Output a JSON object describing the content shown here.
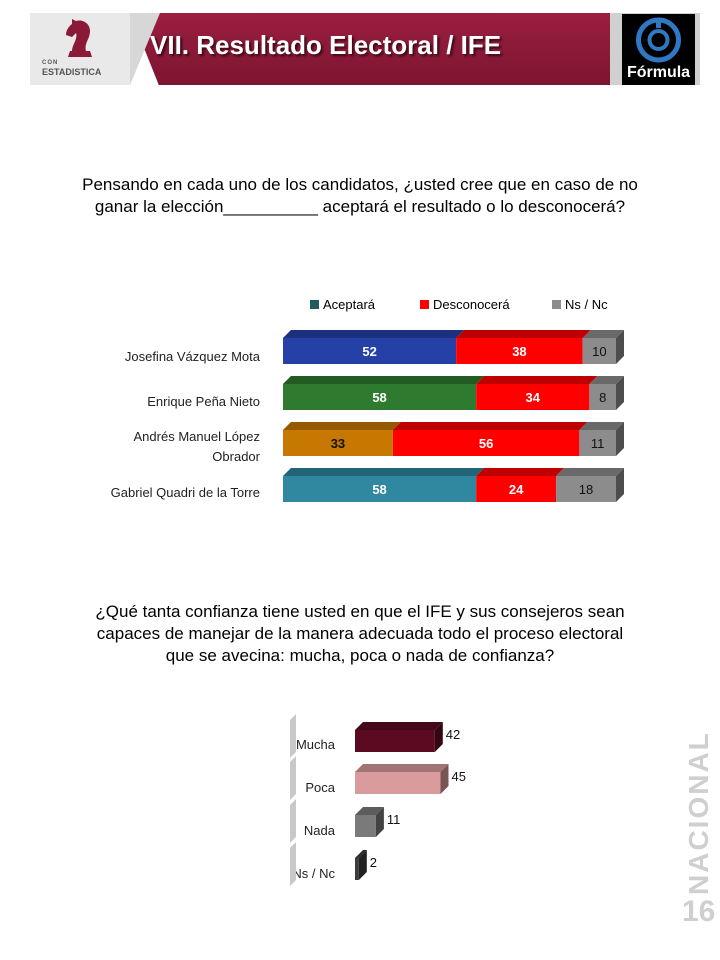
{
  "header": {
    "title": "VII. Resultado Electoral / IFE",
    "left_logo_line1": "CON",
    "left_logo_line2": "ESTADISTICA",
    "right_logo_text": "Fórmula"
  },
  "question1": {
    "line1": "Pensando en cada uno de los candidatos, ¿usted cree que en caso de no",
    "line2": "ganar la elección__________   aceptará el resultado o lo desconocerá?"
  },
  "question2": {
    "line1": "¿Qué tanta confianza tiene usted en que el IFE y sus consejeros sean",
    "line2": "capaces de manejar de la manera adecuada todo el proceso electoral",
    "line3": "que se avecina: mucha, poca o nada de confianza?"
  },
  "side": {
    "vertical_word": "NACIONAL",
    "page_number": "16"
  },
  "chart_data": [
    {
      "type": "bar",
      "orientation": "horizontal",
      "stacked": true,
      "style": "3d",
      "categories": [
        "Josefina Vázquez Mota",
        "Enrique Peña Nieto",
        "Andrés Manuel López Obrador",
        "Gabriel Quadri de la Torre"
      ],
      "category_lines": [
        [
          "Josefina Vázquez Mota"
        ],
        [
          "Enrique Peña Nieto"
        ],
        [
          "Andrés Manuel López",
          "Obrador"
        ],
        [
          "Gabriel Quadri de la Torre"
        ]
      ],
      "series": [
        {
          "name": "Aceptará",
          "values": [
            52,
            58,
            33,
            58
          ],
          "colors": [
            "#2541a8",
            "#2e7a2e",
            "#c77800",
            "#2f87a0"
          ],
          "legend_color": "#1f5c5c"
        },
        {
          "name": "Desconocerá",
          "values": [
            38,
            34,
            56,
            24
          ],
          "color": "#ff0000"
        },
        {
          "name": "Ns / Nc",
          "values": [
            10,
            8,
            11,
            18
          ],
          "color": "#8c8c8c"
        }
      ],
      "legend_position": "top",
      "xlim": [
        0,
        100
      ]
    },
    {
      "type": "bar",
      "orientation": "horizontal",
      "style": "3d",
      "categories": [
        "Mucha",
        "Poca",
        "Nada",
        "Ns / Nc"
      ],
      "values": [
        42,
        45,
        11,
        2
      ],
      "colors": [
        "#5c0a22",
        "#d99b9b",
        "#7a7a7a",
        "#3c3c3c"
      ],
      "xlim": [
        0,
        100
      ]
    }
  ]
}
